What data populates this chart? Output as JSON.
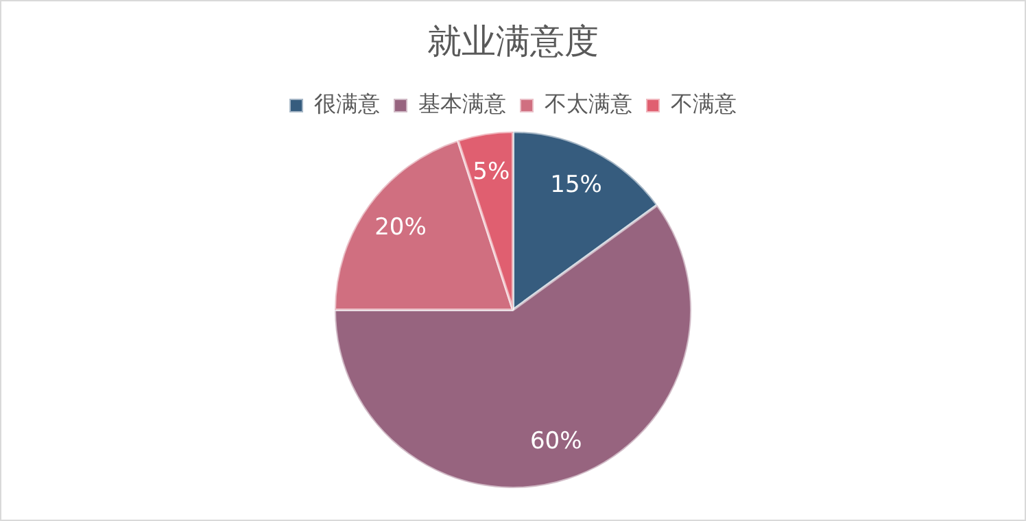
{
  "chart_data": {
    "type": "pie",
    "title": "就业满意度",
    "categories": [
      "很满意",
      "基本满意",
      "不太满意",
      "不满意"
    ],
    "values": [
      15,
      60,
      20,
      5
    ],
    "colors": [
      "#365c7e",
      "#97647f",
      "#d06f80",
      "#e05f70"
    ],
    "value_labels": [
      "15%",
      "60%",
      "20%",
      "5%"
    ],
    "legend": "top"
  }
}
